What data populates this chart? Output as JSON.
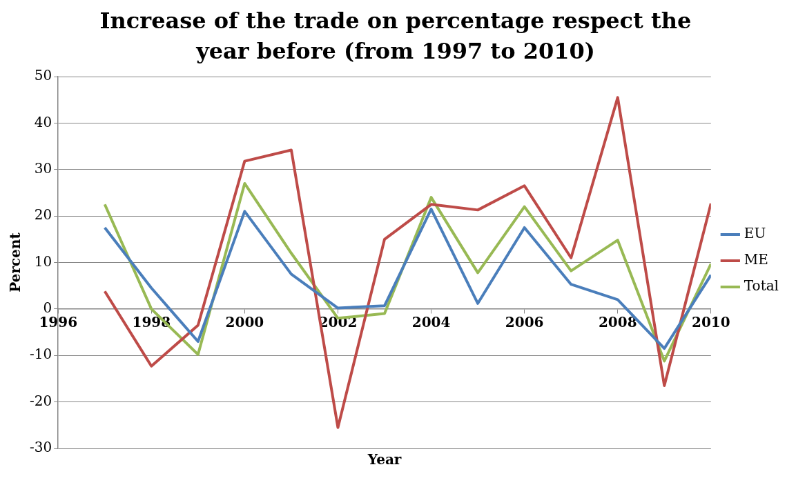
{
  "chart_data": {
    "type": "line",
    "title": "Increase of the trade on percentage respect the year before (from 1997 to 2010)",
    "xlabel": "Year",
    "ylabel": "Percent",
    "x": [
      1997,
      1998,
      1999,
      2000,
      2001,
      2002,
      2003,
      2004,
      2005,
      2006,
      2007,
      2008,
      2009,
      2010
    ],
    "series": [
      {
        "name": "EU",
        "color": "#4a7ebb",
        "values": [
          17.5,
          4.5,
          -7,
          21,
          7.5,
          0.2,
          0.7,
          21.5,
          1.2,
          17.5,
          5.3,
          2,
          -8.5,
          7.3
        ]
      },
      {
        "name": "ME",
        "color": "#be4b48",
        "values": [
          3.8,
          -12.3,
          -3.5,
          31.8,
          34.2,
          -25.5,
          15,
          22.5,
          21.3,
          26.5,
          11,
          45.5,
          -16.5,
          22.7
        ]
      },
      {
        "name": "Total",
        "color": "#98b954",
        "values": [
          22.5,
          0,
          -9.8,
          27,
          12,
          -2,
          -1,
          24,
          7.8,
          22,
          8.2,
          14.8,
          -11.2,
          9.7
        ]
      }
    ],
    "xlim": [
      1996,
      2010
    ],
    "xticks": [
      1996,
      1998,
      2000,
      2002,
      2004,
      2006,
      2008,
      2010
    ],
    "ylim": [
      -30,
      50
    ],
    "yticks": [
      -30,
      -20,
      -10,
      0,
      10,
      20,
      30,
      40,
      50
    ],
    "grid": "y",
    "legend": "right",
    "marker": "none",
    "line_style": "solid"
  }
}
